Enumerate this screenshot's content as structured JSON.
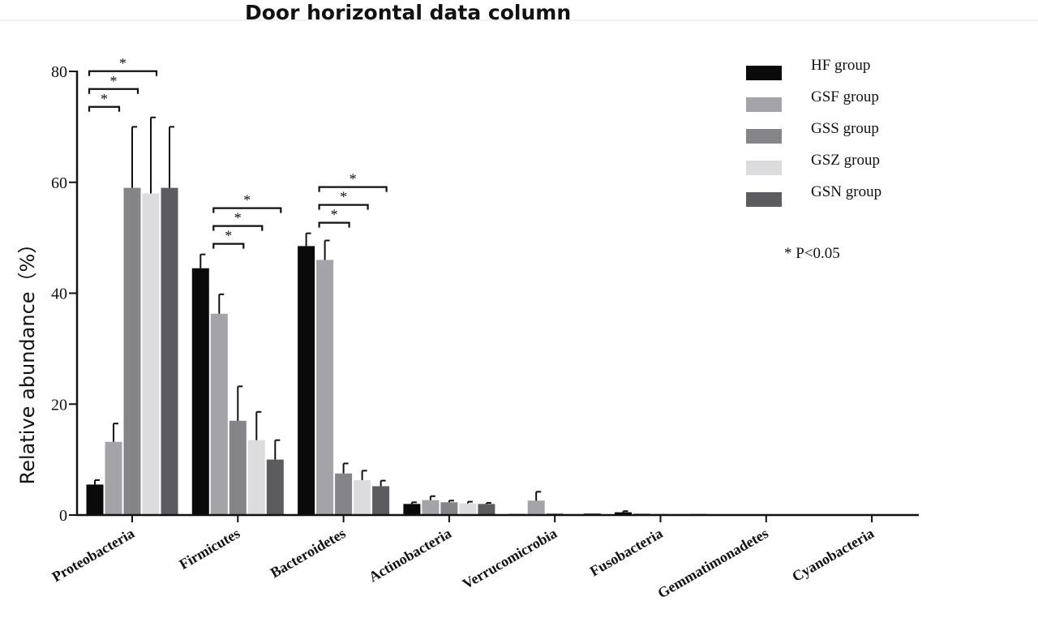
{
  "chart_data": {
    "type": "bar",
    "title": "Door horizontal data column",
    "xlabel": "",
    "ylabel": "Relative abundance（%）",
    "ylim": [
      0,
      80
    ],
    "yticks": [
      0,
      20,
      40,
      60,
      80
    ],
    "grid": false,
    "legend_position": "top-right",
    "categories": [
      "Proteobacteria",
      "Firmicutes",
      "Bacteroidetes",
      "Actinobacteria",
      "Verrucomicrobia",
      "Fusobacteria",
      "Gemmatimonadetes",
      "Cyanobacteria"
    ],
    "series": [
      {
        "name": "HF group",
        "color": "#0a0a0a",
        "values": [
          5.5,
          44.5,
          48.5,
          2.0,
          0.2,
          0.5,
          0.1,
          0.1
        ],
        "errors": [
          0.8,
          2.5,
          2.3,
          0.3,
          0.1,
          0.2,
          0.05,
          0.05
        ]
      },
      {
        "name": "GSF group",
        "color": "#a3a3a8",
        "values": [
          13.2,
          36.3,
          46.0,
          2.7,
          2.6,
          0.3,
          0.1,
          0.1
        ],
        "errors": [
          3.3,
          3.5,
          3.5,
          0.7,
          1.6,
          0.1,
          0.05,
          0.05
        ]
      },
      {
        "name": "GSS group",
        "color": "#858589",
        "values": [
          59.0,
          17.0,
          7.5,
          2.3,
          0.3,
          0.2,
          0.1,
          0.1
        ],
        "errors": [
          11.0,
          6.2,
          1.8,
          0.3,
          0.1,
          0.05,
          0.05,
          0.05
        ]
      },
      {
        "name": "GSZ group",
        "color": "#dcdcde",
        "values": [
          58.0,
          13.5,
          6.3,
          2.1,
          0.2,
          0.2,
          0.1,
          0.1
        ],
        "errors": [
          13.7,
          5.1,
          1.7,
          0.3,
          0.1,
          0.05,
          0.05,
          0.05
        ]
      },
      {
        "name": "GSN group",
        "color": "#5c5c60",
        "values": [
          59.0,
          10.0,
          5.2,
          2.0,
          0.3,
          0.2,
          0.1,
          0.1
        ],
        "errors": [
          11.0,
          3.5,
          1.0,
          0.2,
          0.1,
          0.05,
          0.05,
          0.05
        ]
      }
    ],
    "significance": [
      {
        "category": 0,
        "from": 0,
        "to": 1,
        "label": "*"
      },
      {
        "category": 0,
        "from": 0,
        "to": 2,
        "label": "*"
      },
      {
        "category": 0,
        "from": 0,
        "to": 3,
        "label": "*"
      },
      {
        "category": 1,
        "from": 1,
        "to": 2,
        "label": "*"
      },
      {
        "category": 1,
        "from": 1,
        "to": 3,
        "label": "*"
      },
      {
        "category": 1,
        "from": 1,
        "to": 4,
        "label": "*"
      },
      {
        "category": 2,
        "from": 1,
        "to": 2,
        "label": "*"
      },
      {
        "category": 2,
        "from": 1,
        "to": 3,
        "label": "*"
      },
      {
        "category": 2,
        "from": 1,
        "to": 4,
        "label": "*"
      }
    ],
    "annotations": [
      "* P<0.05"
    ]
  }
}
